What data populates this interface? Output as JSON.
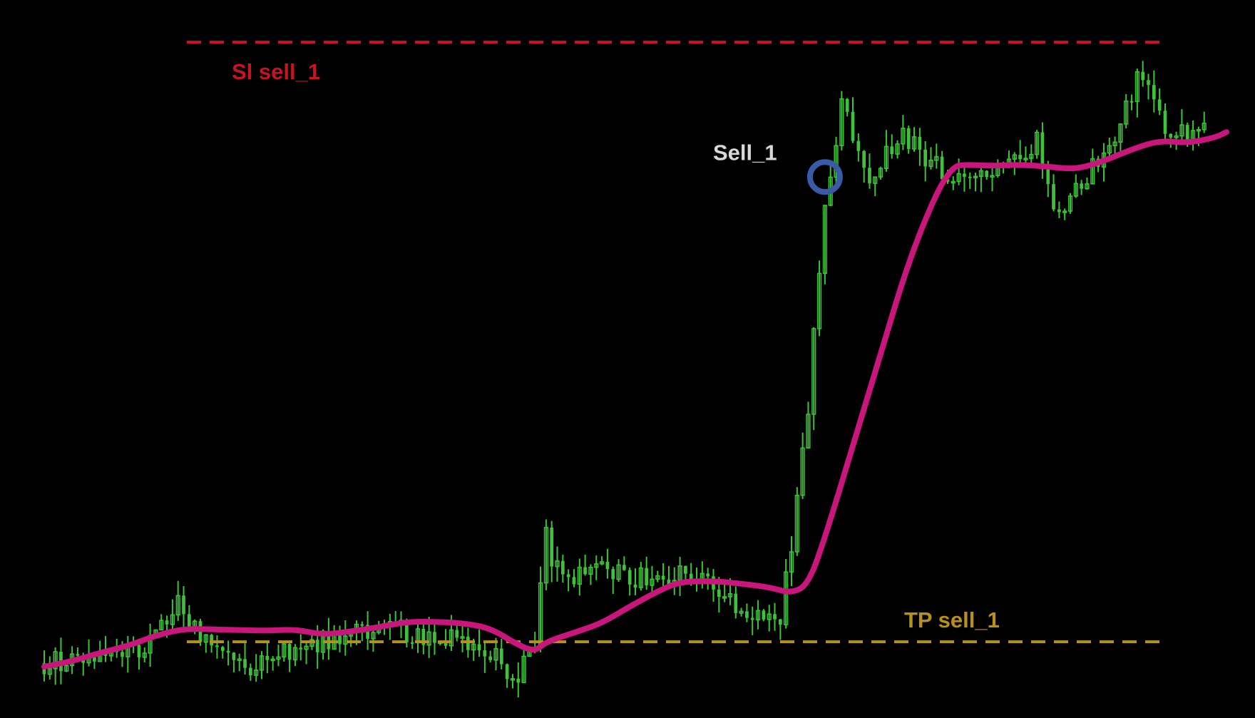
{
  "chart_data": {
    "type": "candlestick",
    "title": "",
    "xlabel": "",
    "ylabel": "",
    "ylim": [
      0,
      100
    ],
    "grid": false,
    "legend": "none",
    "background_color": "#000000",
    "colors": {
      "candle": "#3ec23a",
      "moving_average": "#c8167c",
      "sl_line": "#c8141e",
      "tp_line": "#b8901c",
      "marker": "#3a5aa8",
      "sell_label": "#d8d8d8"
    },
    "levels": [
      {
        "id": "sl",
        "label": "Sl sell_1",
        "value": 97.0,
        "style": "dashed"
      },
      {
        "id": "tp",
        "label": "TP sell_1",
        "value": 10.3,
        "style": "dashed"
      }
    ],
    "trade_marker": {
      "label": "Sell_1",
      "candle_index": 140,
      "value": 77.5
    },
    "candle_anchors": [
      [
        0,
        7.2
      ],
      [
        18,
        9.5
      ],
      [
        24,
        15.8
      ],
      [
        25,
        14.5
      ],
      [
        27,
        12.0
      ],
      [
        35,
        6.5
      ],
      [
        50,
        10.5
      ],
      [
        62,
        12.2
      ],
      [
        72,
        10.8
      ],
      [
        80,
        8.5
      ],
      [
        85,
        5.0
      ],
      [
        88,
        10.0
      ],
      [
        90,
        25.5
      ],
      [
        91,
        22.0
      ],
      [
        95,
        19.0
      ],
      [
        100,
        21.5
      ],
      [
        105,
        19.5
      ],
      [
        115,
        20.0
      ],
      [
        124,
        16.0
      ],
      [
        128,
        13.5
      ],
      [
        132,
        14.0
      ],
      [
        134,
        24.5
      ],
      [
        137,
        44.0
      ],
      [
        139,
        65.0
      ],
      [
        141,
        79.0
      ],
      [
        143,
        87.5
      ],
      [
        148,
        78.0
      ],
      [
        154,
        83.5
      ],
      [
        158,
        80.0
      ],
      [
        165,
        76.5
      ],
      [
        172,
        78.0
      ],
      [
        178,
        83.0
      ],
      [
        182,
        71.0
      ],
      [
        186,
        76.5
      ],
      [
        190,
        81.0
      ],
      [
        194,
        87.0
      ],
      [
        196,
        92.0
      ],
      [
        198,
        90.0
      ],
      [
        201,
        84.0
      ],
      [
        208,
        84.0
      ]
    ],
    "ma_series": [
      [
        0,
        6.7
      ],
      [
        5,
        7.5
      ],
      [
        10,
        8.7
      ],
      [
        15,
        9.7
      ],
      [
        20,
        11.2
      ],
      [
        25,
        12.2
      ],
      [
        30,
        12.1
      ],
      [
        35,
        12.0
      ],
      [
        40,
        11.9
      ],
      [
        45,
        12.1
      ],
      [
        50,
        11.3
      ],
      [
        55,
        11.8
      ],
      [
        60,
        12.4
      ],
      [
        65,
        13.2
      ],
      [
        70,
        13.2
      ],
      [
        75,
        13.0
      ],
      [
        80,
        12.3
      ],
      [
        85,
        9.8
      ],
      [
        88,
        8.9
      ],
      [
        90,
        10.3
      ],
      [
        95,
        11.6
      ],
      [
        100,
        13.0
      ],
      [
        105,
        15.4
      ],
      [
        110,
        17.6
      ],
      [
        114,
        19.0
      ],
      [
        120,
        19.1
      ],
      [
        125,
        18.7
      ],
      [
        130,
        18.2
      ],
      [
        134,
        17.3
      ],
      [
        137,
        18.6
      ],
      [
        140,
        25.3
      ],
      [
        145,
        38.6
      ],
      [
        150,
        52.0
      ],
      [
        155,
        65.3
      ],
      [
        160,
        75.3
      ],
      [
        163,
        79.0
      ],
      [
        165,
        79.3
      ],
      [
        170,
        79.1
      ],
      [
        175,
        79.3
      ],
      [
        180,
        79.0
      ],
      [
        185,
        78.6
      ],
      [
        190,
        79.8
      ],
      [
        195,
        81.5
      ],
      [
        200,
        82.8
      ],
      [
        205,
        82.4
      ],
      [
        210,
        83.2
      ],
      [
        212,
        84.0
      ]
    ]
  }
}
